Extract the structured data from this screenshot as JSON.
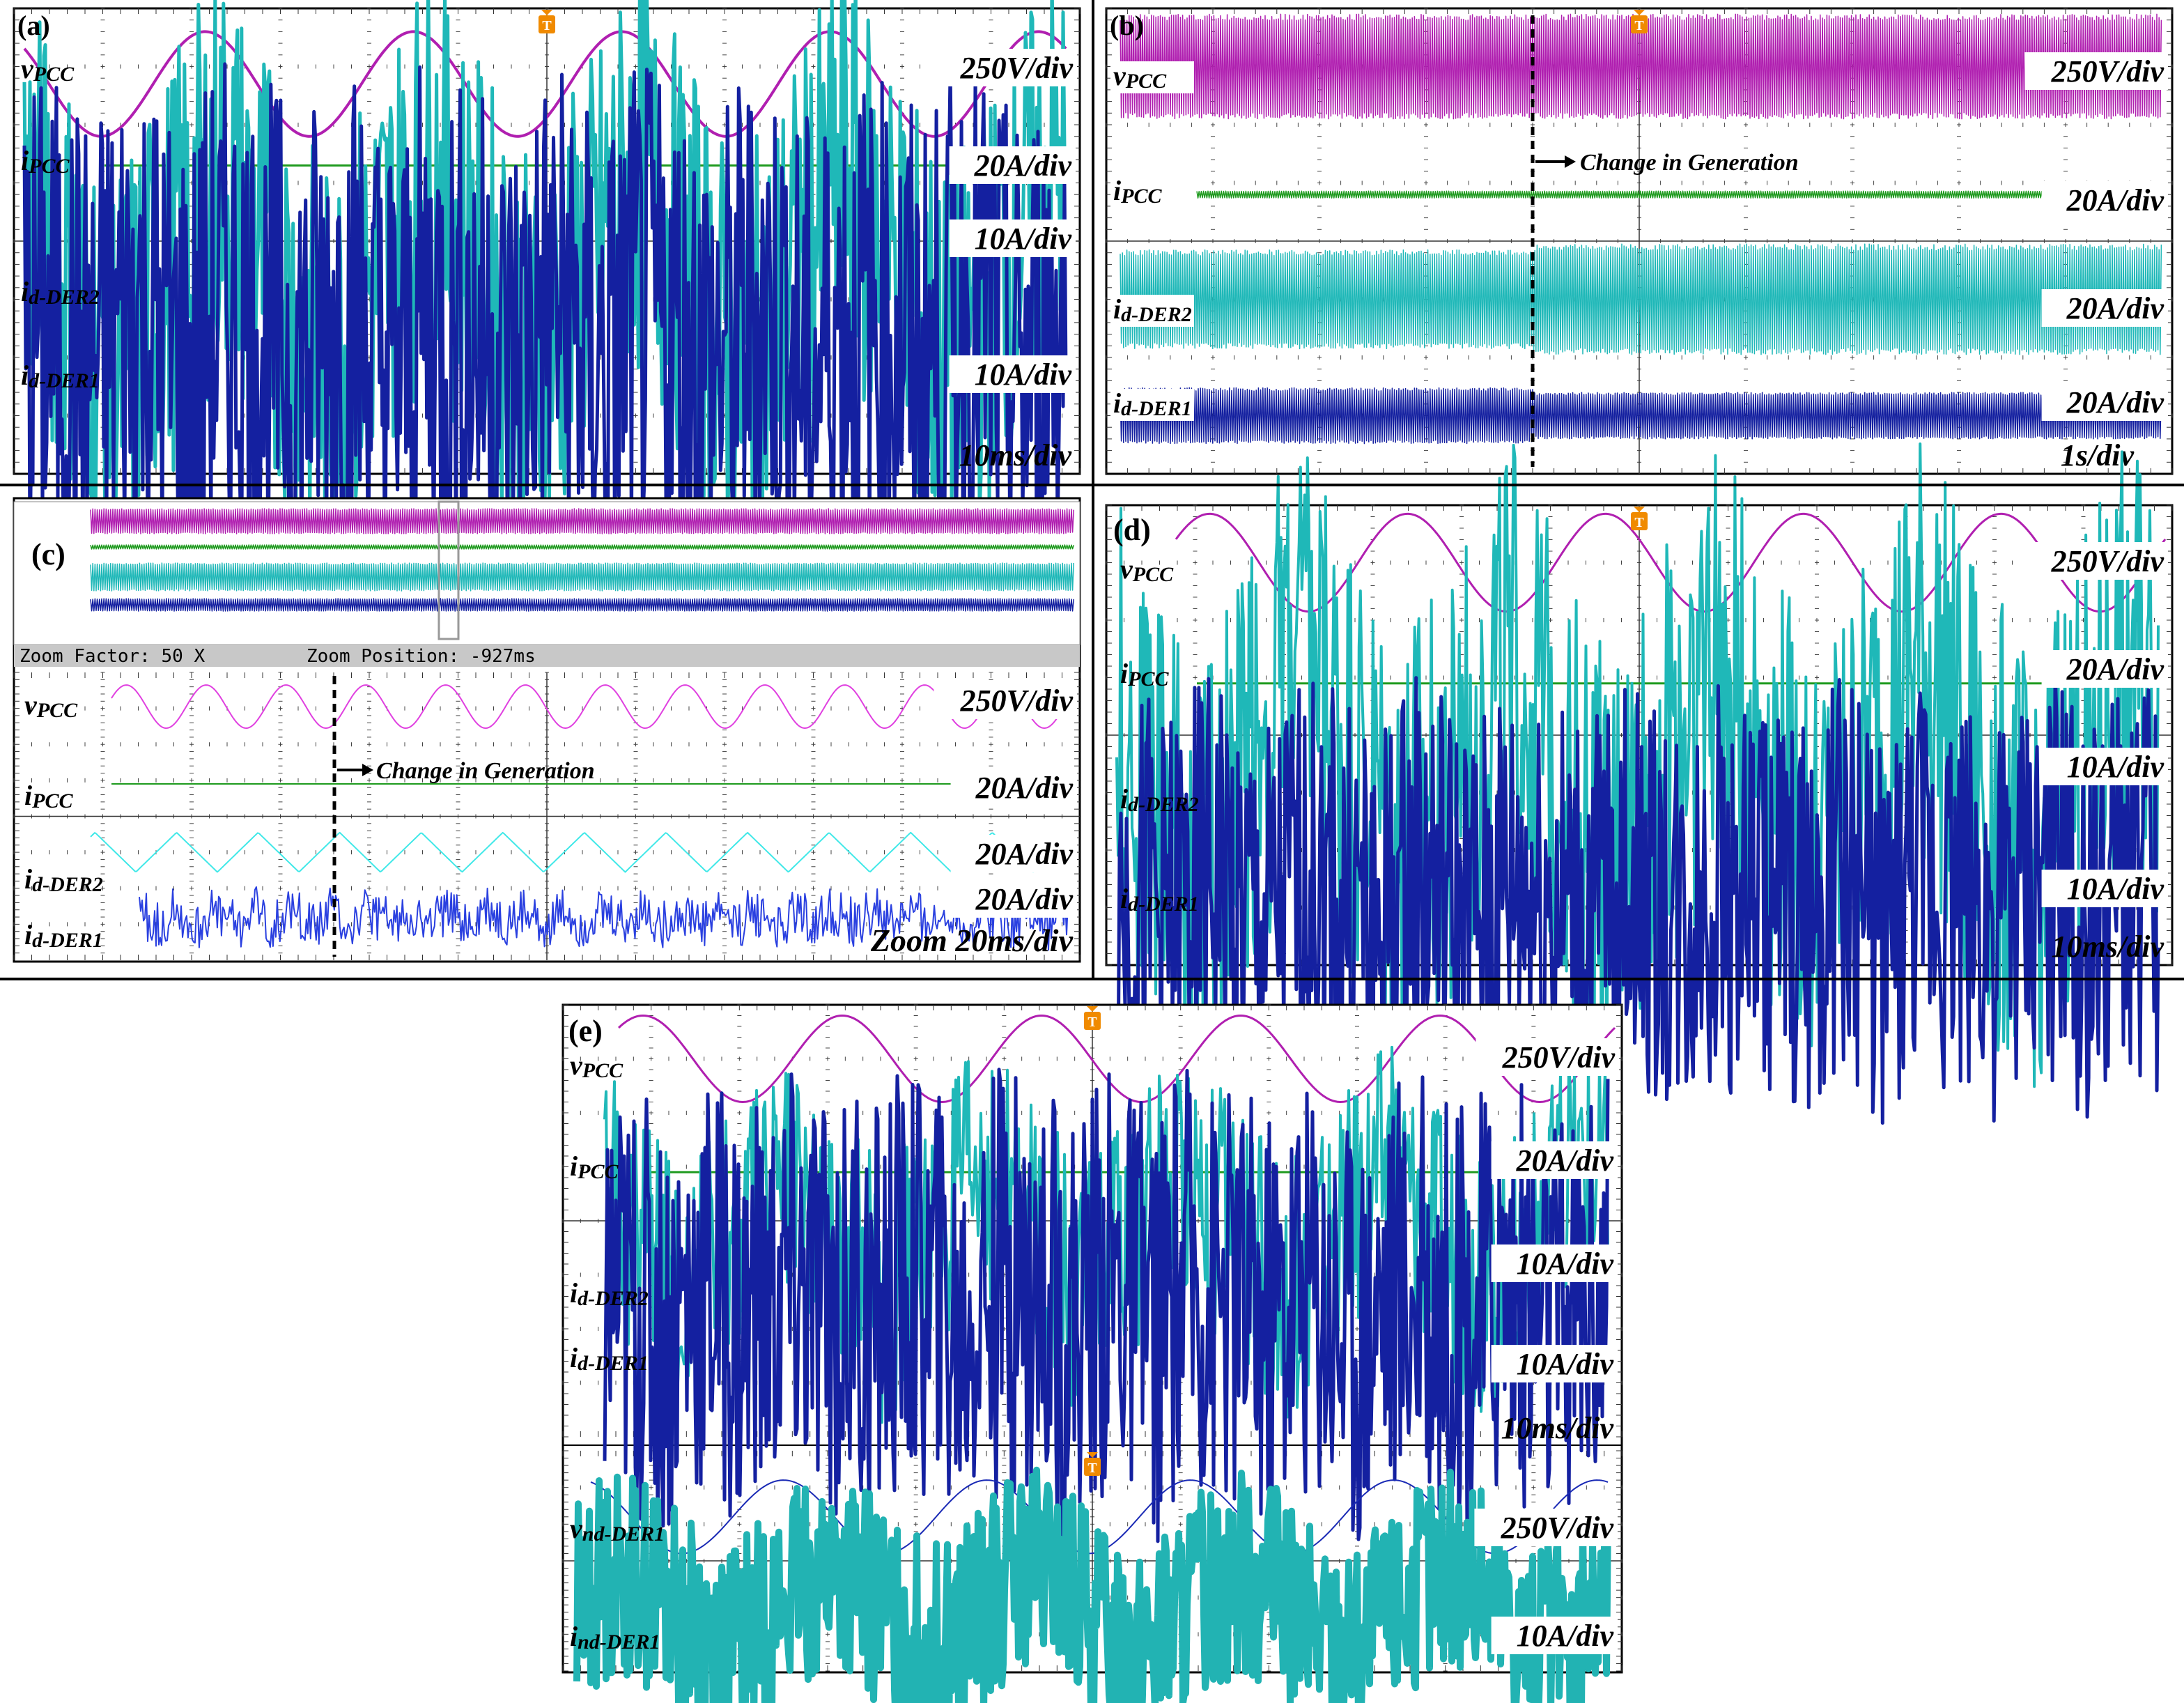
{
  "colors": {
    "vpcc": "#b01fb0",
    "ipcc": "#1e9a1e",
    "ider2": "#1fb8b8",
    "ider1": "#1420a0",
    "vnd": "#1a2ab5",
    "ind": "#22b3b3",
    "grid": "#444444",
    "trigger": "#f08a00"
  },
  "icons": {
    "trigger_marker": "trigger-T-icon"
  },
  "chart_data": [
    {
      "id": "a",
      "type": "line",
      "panel_label": "(a)",
      "trace_names": [
        "vPCC",
        "iPCC",
        "id-DER2",
        "id-DER1"
      ],
      "scale_labels": [
        "250V/div",
        "20A/div",
        "10A/div",
        "10A/div"
      ],
      "time_label": "10ms/div",
      "grid": true,
      "traces": [
        {
          "name": "vPCC",
          "shape": "sine",
          "amplitude_div": 0.9,
          "cycles_on_screen": 5
        },
        {
          "name": "iPCC",
          "shape": "flat-noise",
          "amplitude_div": 0.05
        },
        {
          "name": "id-DER2",
          "shape": "triangular",
          "amplitude_div": 1.9,
          "cycles_on_screen": 5
        },
        {
          "name": "id-DER1",
          "shape": "distorted-rectified",
          "amplitude_div": 1.1,
          "cycles_on_screen": 5
        }
      ]
    },
    {
      "id": "b",
      "type": "line",
      "panel_label": "(b)",
      "trace_names": [
        "vPCC",
        "iPCC",
        "id-DER2",
        "id-DER1"
      ],
      "scale_labels": [
        "250V/div",
        "20A/div",
        "20A/div",
        "20A/div"
      ],
      "time_label": "1s/div",
      "annotation": "Change in Generation",
      "event_time_s": -1.0,
      "grid": true,
      "traces": [
        {
          "name": "vPCC",
          "shape": "envelope",
          "amplitude_div": 1.0
        },
        {
          "name": "iPCC",
          "shape": "envelope",
          "amplitude_div": 0.06
        },
        {
          "name": "id-DER2",
          "shape": "envelope",
          "amplitude_div_before": 0.95,
          "amplitude_div_after": 1.05
        },
        {
          "name": "id-DER1",
          "shape": "envelope",
          "amplitude_div_before": 0.55,
          "amplitude_div_after": 0.45
        }
      ]
    },
    {
      "id": "c",
      "type": "line",
      "panel_label": "(c)",
      "zoom_factor_text": "Zoom Factor: 50 X",
      "zoom_position_text": "Zoom Position: -927ms",
      "trace_names": [
        "vPCC",
        "iPCC",
        "id-DER2",
        "id-DER1"
      ],
      "scale_labels": [
        "250V/div",
        "20A/div",
        "20A/div",
        "20A/div"
      ],
      "time_label": "Zoom 20ms/div",
      "annotation": "Change in Generation",
      "grid": true,
      "traces": [
        {
          "name": "vPCC",
          "shape": "sine",
          "cycles_on_screen": 12
        },
        {
          "name": "iPCC",
          "shape": "flat-noise"
        },
        {
          "name": "id-DER2",
          "shape": "triangular",
          "cycles_on_screen": 12
        },
        {
          "name": "id-DER1",
          "shape": "distorted-rectified",
          "cycles_on_screen": 12
        }
      ]
    },
    {
      "id": "d",
      "type": "line",
      "panel_label": "(d)",
      "trace_names": [
        "vPCC",
        "iPCC",
        "id-DER2",
        "id-DER1"
      ],
      "scale_labels": [
        "250V/div",
        "20A/div",
        "10A/div",
        "10A/div"
      ],
      "time_label": "10ms/div",
      "grid": true,
      "traces": [
        {
          "name": "vPCC",
          "shape": "sine",
          "cycles_on_screen": 5
        },
        {
          "name": "iPCC",
          "shape": "flat-noise"
        },
        {
          "name": "id-DER2",
          "shape": "triangular",
          "cycles_on_screen": 5
        },
        {
          "name": "id-DER1",
          "shape": "distorted-rectified",
          "cycles_on_screen": 5
        }
      ]
    },
    {
      "id": "e",
      "type": "line",
      "panel_label": "(e)",
      "trace_names": [
        "vPCC",
        "iPCC",
        "id-DER2",
        "id-DER1",
        "vnd-DER1",
        "ind-DER1"
      ],
      "scale_labels": [
        "250V/div",
        "20A/div",
        "10A/div",
        "10A/div",
        "250V/div",
        "10A/div"
      ],
      "time_label": "10ms/div",
      "grid": true,
      "traces": [
        {
          "name": "vPCC",
          "shape": "sine",
          "cycles_on_screen": 5
        },
        {
          "name": "iPCC",
          "shape": "flat-noise"
        },
        {
          "name": "id-DER2",
          "shape": "triangular",
          "cycles_on_screen": 5
        },
        {
          "name": "id-DER1",
          "shape": "distorted-rectified",
          "cycles_on_screen": 5
        },
        {
          "name": "vnd-DER1",
          "shape": "sine",
          "cycles_on_screen": 5
        },
        {
          "name": "ind-DER1",
          "shape": "sine-noisy",
          "cycles_on_screen": 5
        }
      ]
    }
  ]
}
